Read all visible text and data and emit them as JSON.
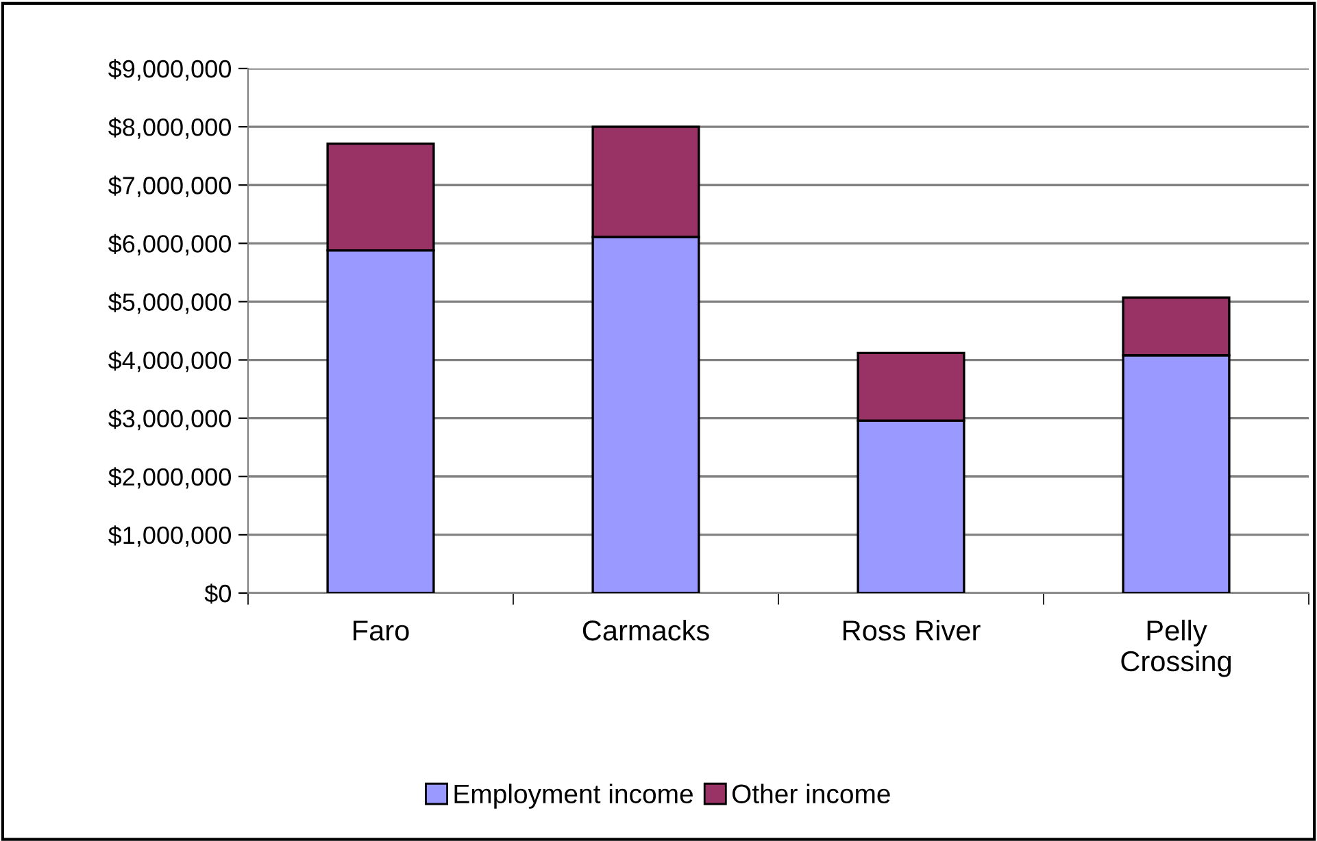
{
  "chart_data": {
    "type": "bar",
    "stacked": true,
    "categories": [
      "Faro",
      "Carmacks",
      "Ross River",
      "Pelly\nCrossing"
    ],
    "series": [
      {
        "name": "Employment income",
        "color": "#9999ff",
        "values": [
          5880000,
          6110000,
          2960000,
          4080000
        ]
      },
      {
        "name": "Other income",
        "color": "#993366",
        "values": [
          1830000,
          1890000,
          1160000,
          990000
        ]
      }
    ],
    "ylim": [
      0,
      9000000
    ],
    "yticks": [
      {
        "value": 0,
        "label": "$0"
      },
      {
        "value": 1000000,
        "label": "$1,000,000"
      },
      {
        "value": 2000000,
        "label": "$2,000,000"
      },
      {
        "value": 3000000,
        "label": "$3,000,000"
      },
      {
        "value": 4000000,
        "label": "$4,000,000"
      },
      {
        "value": 5000000,
        "label": "$5,000,000"
      },
      {
        "value": 6000000,
        "label": "$6,000,000"
      },
      {
        "value": 7000000,
        "label": "$7,000,000"
      },
      {
        "value": 8000000,
        "label": "$8,000,000"
      },
      {
        "value": 9000000,
        "label": "$9,000,000"
      }
    ],
    "grid": "y",
    "legend": "bottom"
  }
}
